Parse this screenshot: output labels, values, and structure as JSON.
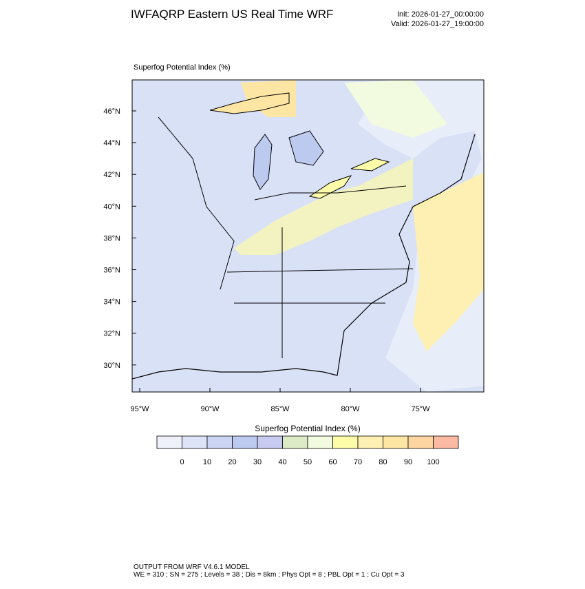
{
  "header": {
    "title": "IWFAQRP Eastern US Real Time WRF",
    "init": "Init: 2026-01-27_00:00:00",
    "valid": "Valid: 2026-01-27_19:00:00"
  },
  "map": {
    "label": "Superfog Potential Index   (%)",
    "lat_labels": [
      "46°N",
      "44°N",
      "42°N",
      "40°N",
      "38°N",
      "36°N",
      "34°N",
      "32°N",
      "30°N"
    ],
    "lon_labels": [
      "95°W",
      "90°W",
      "85°W",
      "80°W",
      "75°W"
    ]
  },
  "colorbar": {
    "title": "Superfog Potential Index  (%)",
    "colors": [
      "#eef1fa",
      "#dde4f7",
      "#ccd6f4",
      "#bccaf0",
      "#c8cbf1",
      "#dcebc6",
      "#f2fbdf",
      "#fdfca8",
      "#fdf0b2",
      "#fde6a4",
      "#fcd5a0",
      "#fbb9a1"
    ],
    "labels": [
      0,
      10,
      20,
      30,
      40,
      50,
      60,
      70,
      80,
      90,
      100
    ]
  },
  "footer": {
    "line1": "OUTPUT FROM WRF V4.6.1 MODEL",
    "line2": "WE = 310 ; SN = 275 ; Levels = 38 ; Dis = 8km ; Phys Opt = 8 ; PBL Opt = 1 ; Cu Opt = 3"
  }
}
